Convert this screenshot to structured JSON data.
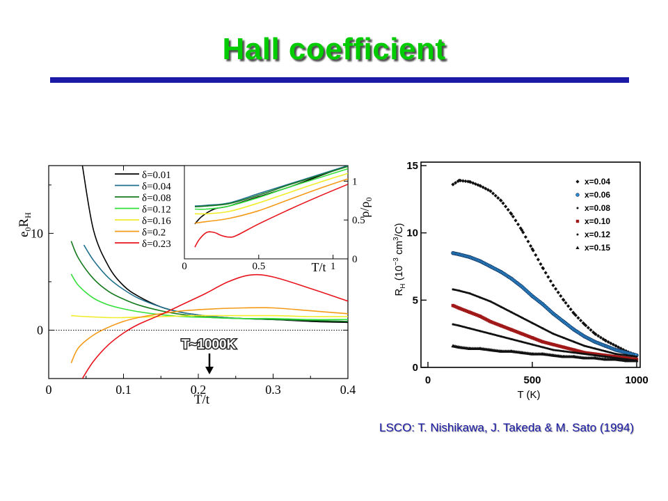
{
  "slide": {
    "title": "Hall coefficient",
    "caption": "LSCO: T. Nishikawa, J. Takeda & M. Sato (1994)",
    "title_color": "#00cc00",
    "rule_color": "#1a1aa6"
  },
  "chart_data": [
    {
      "type": "line",
      "xlabel": "T/t",
      "ylabel": "e0RH",
      "xlim": [
        0,
        0.4
      ],
      "ylim": [
        -5,
        17
      ],
      "xticks": [
        "0",
        "0.1",
        "0.2",
        "0.3",
        "0.4"
      ],
      "yticks": [
        "0",
        "10"
      ],
      "annotation": "T~1000K",
      "annotation_x": 0.22,
      "legend_position": "top-right",
      "series": [
        {
          "name": "δ=0.01",
          "color": "#000000",
          "x": [
            0.045,
            0.06,
            0.08,
            0.1,
            0.12,
            0.15,
            0.18,
            0.22,
            0.26,
            0.3,
            0.35,
            0.4
          ],
          "y": [
            17,
            10.3,
            6.6,
            4.6,
            3.5,
            2.4,
            1.8,
            1.4,
            1.2,
            1.1,
            0.9,
            0.8
          ]
        },
        {
          "name": "δ=0.04",
          "color": "#1f6f8b",
          "x": [
            0.047,
            0.06,
            0.08,
            0.1,
            0.12,
            0.15,
            0.18,
            0.22,
            0.26,
            0.3,
            0.35,
            0.4
          ],
          "y": [
            8.8,
            7.2,
            5.4,
            4.2,
            3.3,
            2.4,
            1.8,
            1.4,
            1.2,
            1.1,
            1.0,
            0.9
          ]
        },
        {
          "name": "δ=0.08",
          "color": "#157a1e",
          "x": [
            0.03,
            0.04,
            0.06,
            0.08,
            0.1,
            0.12,
            0.15,
            0.18,
            0.22,
            0.26,
            0.3,
            0.35,
            0.4
          ],
          "y": [
            9.2,
            7.4,
            5.3,
            4.0,
            3.2,
            2.6,
            2.0,
            1.6,
            1.3,
            1.2,
            1.1,
            1.0,
            0.9
          ]
        },
        {
          "name": "δ=0.12",
          "color": "#33e03a",
          "x": [
            0.03,
            0.04,
            0.06,
            0.08,
            0.1,
            0.12,
            0.15,
            0.18,
            0.22,
            0.26,
            0.3,
            0.35,
            0.4
          ],
          "y": [
            5.8,
            4.6,
            3.3,
            2.6,
            2.2,
            1.9,
            1.6,
            1.4,
            1.3,
            1.2,
            1.2,
            1.1,
            1.1
          ]
        },
        {
          "name": "δ=0.16",
          "color": "#f0ec2a",
          "x": [
            0.03,
            0.05,
            0.08,
            0.1,
            0.15,
            0.2,
            0.25,
            0.3,
            0.35,
            0.4
          ],
          "y": [
            1.5,
            1.4,
            1.3,
            1.3,
            1.4,
            1.5,
            1.5,
            1.5,
            1.4,
            1.4
          ]
        },
        {
          "name": "δ=0.2",
          "color": "#f59a17",
          "x": [
            0.03,
            0.04,
            0.06,
            0.08,
            0.1,
            0.12,
            0.15,
            0.18,
            0.22,
            0.26,
            0.3,
            0.35,
            0.4
          ],
          "y": [
            -3.4,
            -1.8,
            -0.5,
            0.3,
            0.9,
            1.3,
            1.7,
            2.0,
            2.2,
            2.3,
            2.3,
            2.0,
            1.7
          ]
        },
        {
          "name": "δ=0.23",
          "color": "#e8131c",
          "x": [
            0.045,
            0.06,
            0.08,
            0.1,
            0.12,
            0.15,
            0.18,
            0.21,
            0.24,
            0.27,
            0.3,
            0.35,
            0.4
          ],
          "y": [
            -5,
            -3.2,
            -1.5,
            -0.3,
            0.6,
            1.6,
            2.7,
            3.8,
            5.0,
            5.7,
            5.5,
            4.3,
            3.0
          ]
        }
      ]
    },
    {
      "type": "line",
      "inset": true,
      "xlabel": "T/t",
      "ylabel": "ρ/ρ0",
      "xlim": [
        0,
        1.1
      ],
      "ylim": [
        0,
        1.2
      ],
      "xticks": [
        "0",
        "0.5",
        "1"
      ],
      "yticks": [
        "0",
        "0.5",
        "1"
      ],
      "series": [
        {
          "name": "δ=0.01",
          "color": "#000000",
          "x": [
            0.07,
            0.12,
            0.2,
            0.3,
            0.5,
            0.7,
            0.9,
            1.1
          ],
          "y": [
            0.45,
            0.55,
            0.64,
            0.68,
            0.8,
            0.92,
            1.06,
            1.2
          ]
        },
        {
          "name": "δ=0.04",
          "color": "#1f6f8b",
          "x": [
            0.07,
            0.15,
            0.3,
            0.5,
            0.7,
            0.9,
            1.1
          ],
          "y": [
            0.68,
            0.69,
            0.72,
            0.84,
            0.96,
            1.08,
            1.2
          ]
        },
        {
          "name": "δ=0.08",
          "color": "#157a1e",
          "x": [
            0.07,
            0.15,
            0.3,
            0.5,
            0.7,
            0.9,
            1.1
          ],
          "y": [
            0.67,
            0.68,
            0.71,
            0.82,
            0.95,
            1.07,
            1.19
          ]
        },
        {
          "name": "δ=0.12",
          "color": "#33e03a",
          "x": [
            0.07,
            0.15,
            0.3,
            0.5,
            0.7,
            0.9,
            1.1
          ],
          "y": [
            0.64,
            0.64,
            0.68,
            0.79,
            0.92,
            1.04,
            1.16
          ]
        },
        {
          "name": "δ=0.16",
          "color": "#f0ec2a",
          "x": [
            0.07,
            0.15,
            0.3,
            0.5,
            0.7,
            0.9,
            1.1
          ],
          "y": [
            0.58,
            0.58,
            0.61,
            0.72,
            0.85,
            0.98,
            1.1
          ]
        },
        {
          "name": "δ=0.2",
          "color": "#f59a17",
          "x": [
            0.07,
            0.15,
            0.3,
            0.5,
            0.7,
            0.9,
            1.1
          ],
          "y": [
            0.46,
            0.48,
            0.52,
            0.62,
            0.76,
            0.9,
            1.03
          ]
        },
        {
          "name": "δ=0.23",
          "color": "#e8131c",
          "x": [
            0.07,
            0.1,
            0.15,
            0.2,
            0.25,
            0.3,
            0.35,
            0.5,
            0.7,
            0.9,
            1.1
          ],
          "y": [
            0.15,
            0.25,
            0.34,
            0.34,
            0.3,
            0.28,
            0.3,
            0.45,
            0.63,
            0.8,
            0.96
          ]
        }
      ]
    },
    {
      "type": "scatter",
      "xlabel": "T (K)",
      "ylabel": "RH (10−3 cm3/C)",
      "xlim": [
        0,
        1000
      ],
      "ylim": [
        0,
        15
      ],
      "xticks": [
        "0",
        "500",
        "1000"
      ],
      "yticks": [
        "0",
        "5",
        "10",
        "15"
      ],
      "legend_position": "top-right",
      "series": [
        {
          "name": "x=0.04",
          "marker": "diamond",
          "color": "#111111",
          "x": [
            120,
            150,
            200,
            250,
            300,
            350,
            400,
            450,
            500,
            550,
            600,
            650,
            700,
            750,
            800,
            850,
            900,
            950,
            1000
          ],
          "y": [
            13.6,
            13.9,
            13.8,
            13.5,
            13.1,
            12.4,
            11.4,
            10.2,
            8.8,
            7.4,
            6.1,
            5.0,
            4.0,
            3.2,
            2.5,
            2.0,
            1.6,
            1.2,
            0.9
          ]
        },
        {
          "name": "x=0.06",
          "marker": "circle",
          "color": "#2e8bd0",
          "x": [
            120,
            150,
            200,
            250,
            300,
            350,
            400,
            450,
            500,
            550,
            600,
            650,
            700,
            750,
            800,
            850,
            900,
            950,
            1000
          ],
          "y": [
            8.5,
            8.4,
            8.2,
            7.9,
            7.5,
            7.1,
            6.6,
            6.0,
            5.3,
            4.7,
            4.0,
            3.4,
            2.8,
            2.3,
            1.9,
            1.6,
            1.3,
            1.1,
            0.9
          ]
        },
        {
          "name": "x=0.08",
          "marker": "dot",
          "color": "#111111",
          "x": [
            120,
            150,
            200,
            250,
            300,
            350,
            400,
            450,
            500,
            550,
            600,
            650,
            700,
            750,
            800,
            850,
            900,
            950,
            1000
          ],
          "y": [
            5.8,
            5.7,
            5.5,
            5.2,
            4.9,
            4.5,
            4.1,
            3.7,
            3.3,
            2.9,
            2.5,
            2.2,
            1.9,
            1.6,
            1.4,
            1.2,
            1.0,
            0.9,
            0.8
          ]
        },
        {
          "name": "x=0.10",
          "marker": "square",
          "color": "#a01818",
          "x": [
            120,
            150,
            200,
            250,
            300,
            350,
            400,
            450,
            500,
            550,
            600,
            650,
            700,
            750,
            800,
            850,
            900,
            950,
            1000
          ],
          "y": [
            4.6,
            4.4,
            4.1,
            3.8,
            3.4,
            3.1,
            2.8,
            2.5,
            2.2,
            1.9,
            1.7,
            1.5,
            1.3,
            1.1,
            1.0,
            0.9,
            0.8,
            0.7,
            0.6
          ]
        },
        {
          "name": "x=0.12",
          "marker": "dot",
          "color": "#111111",
          "x": [
            120,
            150,
            200,
            250,
            300,
            350,
            400,
            450,
            500,
            550,
            600,
            650,
            700,
            750,
            800,
            850,
            900,
            950,
            1000
          ],
          "y": [
            3.2,
            3.1,
            2.9,
            2.7,
            2.5,
            2.3,
            2.1,
            1.9,
            1.7,
            1.5,
            1.3,
            1.2,
            1.1,
            1.0,
            0.9,
            0.8,
            0.7,
            0.6,
            0.5
          ]
        },
        {
          "name": "x=0.15",
          "marker": "triangle",
          "color": "#111111",
          "x": [
            120,
            150,
            200,
            250,
            300,
            350,
            400,
            450,
            500,
            550,
            600,
            650,
            700,
            750,
            800,
            850,
            900,
            950,
            1000
          ],
          "y": [
            1.6,
            1.5,
            1.4,
            1.4,
            1.3,
            1.2,
            1.2,
            1.1,
            1.0,
            1.0,
            0.9,
            0.8,
            0.8,
            0.7,
            0.7,
            0.6,
            0.6,
            0.5,
            0.5
          ]
        }
      ]
    }
  ]
}
